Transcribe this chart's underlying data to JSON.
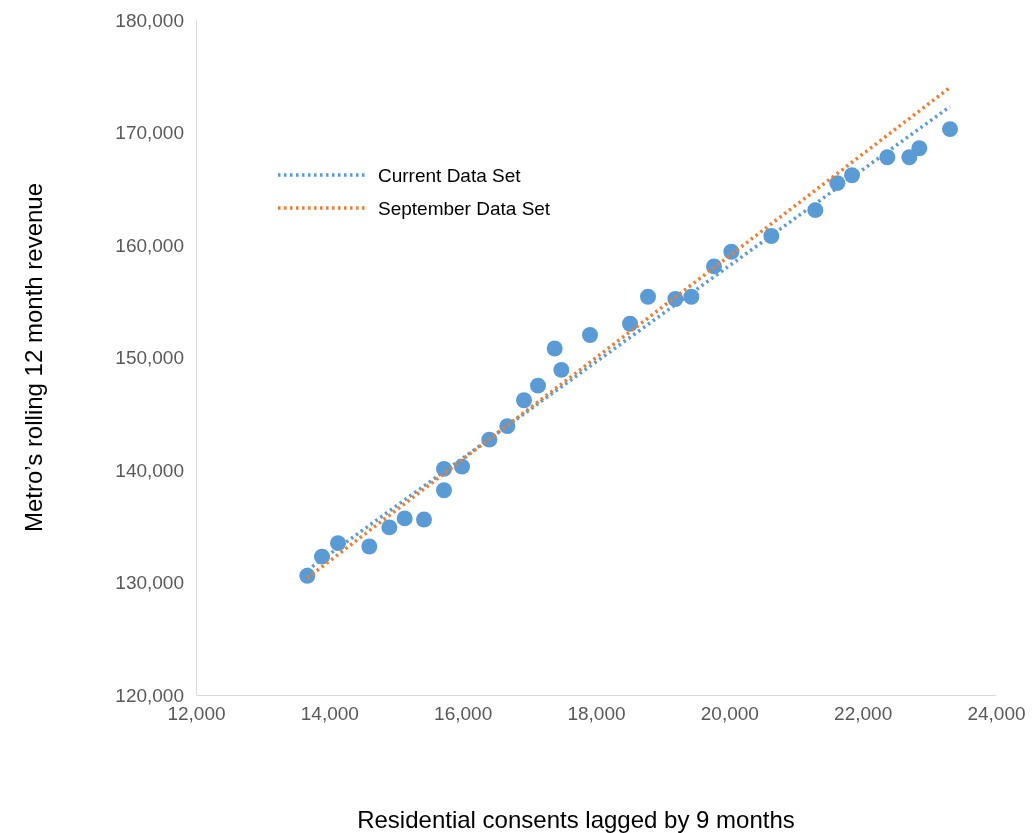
{
  "chart_data": {
    "type": "scatter",
    "xlabel": "Residential consents lagged by 9 months",
    "ylabel": "Metro’s rolling 12 month revenue",
    "xlim": [
      12000,
      24000
    ],
    "xticks": [
      {
        "value": 12000,
        "label": "12,000"
      },
      {
        "value": 14000,
        "label": "14,000"
      },
      {
        "value": 16000,
        "label": "16,000"
      },
      {
        "value": 18000,
        "label": "18,000"
      },
      {
        "value": 20000,
        "label": "20,000"
      },
      {
        "value": 22000,
        "label": "22,000"
      },
      {
        "value": 24000,
        "label": "24,000"
      }
    ],
    "ylim": [
      120000,
      180000
    ],
    "yticks": [
      {
        "value": 120000,
        "label": "120,000"
      },
      {
        "value": 130000,
        "label": "130,000"
      },
      {
        "value": 140000,
        "label": "140,000"
      },
      {
        "value": 150000,
        "label": "150,000"
      },
      {
        "value": 160000,
        "label": "160,000"
      },
      {
        "value": 170000,
        "label": "170,000"
      },
      {
        "value": 180000,
        "label": "180,000"
      }
    ],
    "grid": false,
    "legend": "top left",
    "marker": "circle",
    "series": [
      {
        "color": "#5b9bd5",
        "x": [
          13670,
          13890,
          14130,
          14600,
          14900,
          15130,
          15420,
          15720,
          15720,
          15990,
          16400,
          16670,
          16920,
          17130,
          17380,
          17480,
          17910,
          18510,
          18780,
          19190,
          19430,
          19770,
          20030,
          20630,
          21290,
          21620,
          21840,
          22370,
          22700,
          22850,
          23310
        ],
        "values": [
          130600,
          132300,
          133500,
          133200,
          134900,
          135700,
          135600,
          140100,
          138200,
          140300,
          142700,
          143900,
          146200,
          147500,
          150800,
          148900,
          152000,
          153000,
          155400,
          155200,
          155400,
          158100,
          159400,
          160800,
          163100,
          165500,
          166200,
          167800,
          167800,
          168600,
          170300
        ]
      },
      {
        "type": "line",
        "name": "Current Data Set",
        "color": "#5b9bd5",
        "line_style": "dotted",
        "marker": "none",
        "x": [
          13670,
          23310
        ],
        "values": [
          131100,
          172300
        ]
      },
      {
        "type": "line",
        "name": "September Data Set",
        "color": "#ed7d31",
        "line_style": "dotted",
        "marker": "none",
        "x": [
          13670,
          23310
        ],
        "values": [
          130400,
          174000
        ]
      }
    ]
  }
}
